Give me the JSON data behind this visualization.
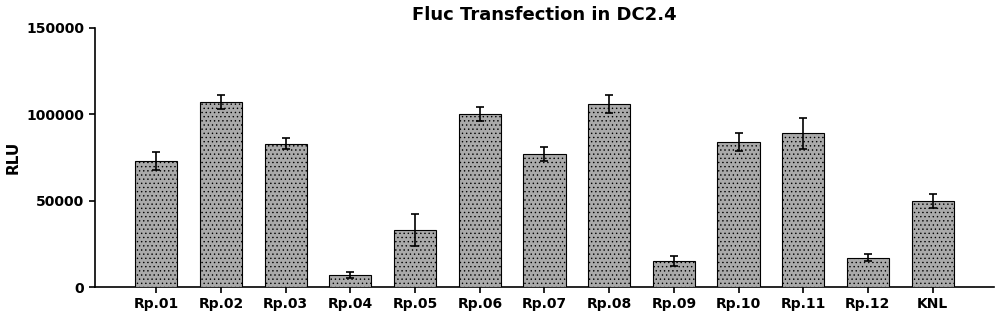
{
  "title": "Fluc Transfection in DC2.4",
  "ylabel": "RLU",
  "categories": [
    "Rp.01",
    "Rp.02",
    "Rp.03",
    "Rp.04",
    "Rp.05",
    "Rp.06",
    "Rp.07",
    "Rp.08",
    "Rp.09",
    "Rp.10",
    "Rp.11",
    "Rp.12",
    "KNL"
  ],
  "values": [
    73000,
    107000,
    83000,
    7000,
    33000,
    100000,
    77000,
    106000,
    15000,
    84000,
    89000,
    17000,
    50000
  ],
  "errors": [
    5000,
    4000,
    3000,
    1500,
    9000,
    4000,
    4000,
    5000,
    3000,
    5000,
    9000,
    2000,
    4000
  ],
  "bar_color": "#aaaaaa",
  "hatch": "....",
  "ylim": [
    0,
    150000
  ],
  "yticks": [
    0,
    50000,
    100000,
    150000
  ],
  "title_fontsize": 13,
  "axis_fontsize": 11,
  "tick_fontsize": 10,
  "bar_width": 0.65,
  "background_color": "#ffffff",
  "edge_color": "#000000",
  "figsize": [
    10.0,
    3.17
  ],
  "dpi": 100
}
